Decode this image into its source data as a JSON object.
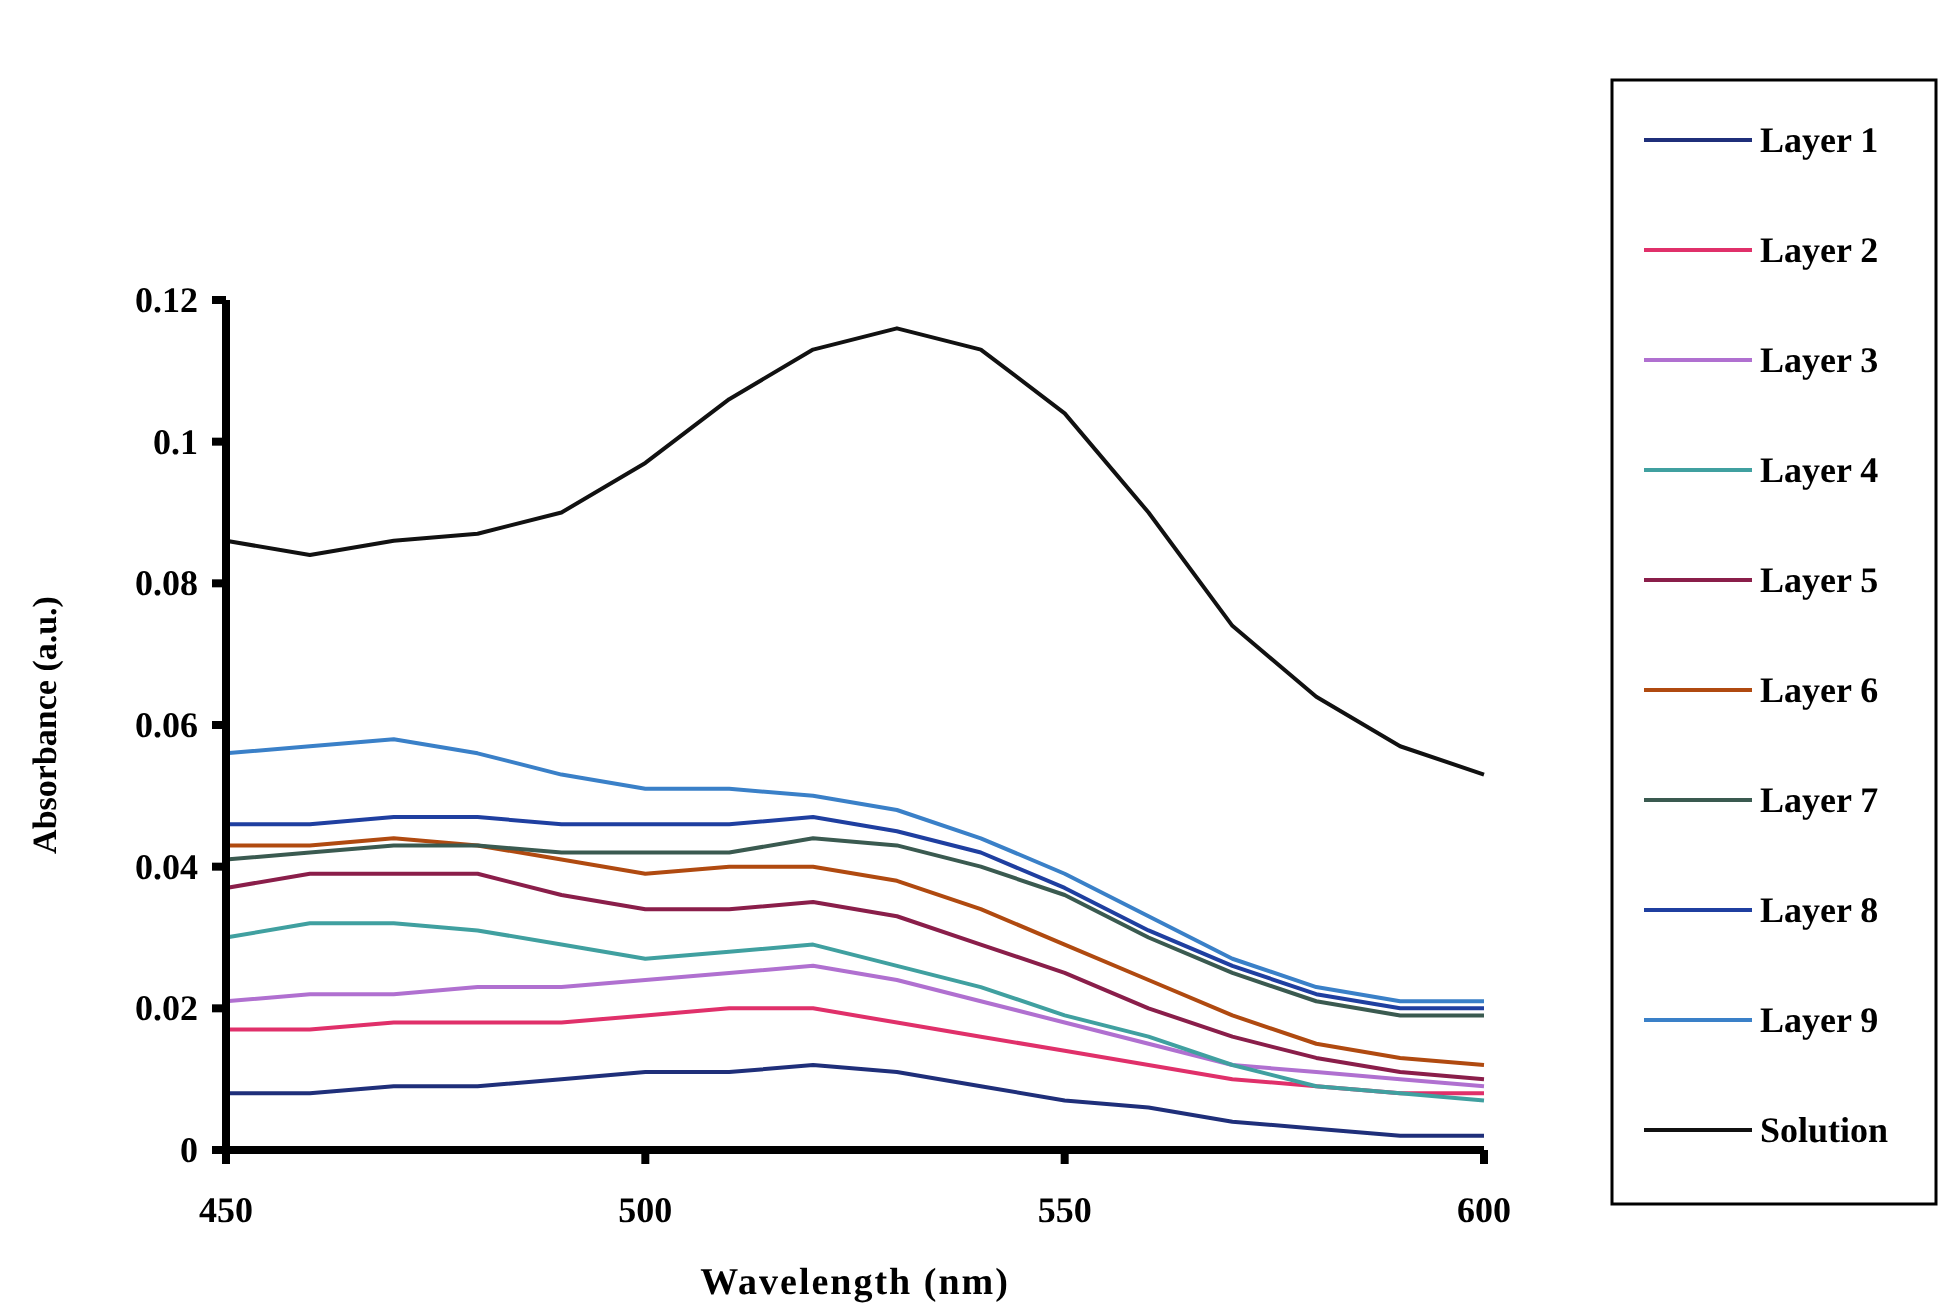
{
  "chart_data": {
    "type": "line",
    "xlabel": "Wavelength (nm)",
    "ylabel": "Absorbance (a.u.)",
    "xlim": [
      450,
      600
    ],
    "xticks": [
      450,
      500,
      550,
      600
    ],
    "ylim": [
      0,
      0.12
    ],
    "yticks": [
      0,
      0.02,
      0.04,
      0.06,
      0.08,
      0.1,
      0.12
    ],
    "legend": "right",
    "line_style": "solid",
    "x": [
      450,
      460,
      470,
      480,
      490,
      500,
      510,
      520,
      530,
      540,
      550,
      560,
      570,
      580,
      590,
      600
    ],
    "series": [
      {
        "name": "Layer 1",
        "color": "#1f2f7a",
        "values": [
          0.008,
          0.008,
          0.009,
          0.009,
          0.01,
          0.011,
          0.011,
          0.012,
          0.011,
          0.009,
          0.007,
          0.006,
          0.004,
          0.003,
          0.002,
          0.002
        ]
      },
      {
        "name": "Layer 2",
        "color": "#e0306a",
        "values": [
          0.017,
          0.017,
          0.018,
          0.018,
          0.018,
          0.019,
          0.02,
          0.02,
          0.018,
          0.016,
          0.014,
          0.012,
          0.01,
          0.009,
          0.008,
          0.008
        ]
      },
      {
        "name": "Layer 3",
        "color": "#b070d0",
        "values": [
          0.021,
          0.022,
          0.022,
          0.023,
          0.023,
          0.024,
          0.025,
          0.026,
          0.024,
          0.021,
          0.018,
          0.015,
          0.012,
          0.011,
          0.01,
          0.009
        ]
      },
      {
        "name": "Layer 4",
        "color": "#40a0a0",
        "values": [
          0.03,
          0.032,
          0.032,
          0.031,
          0.029,
          0.027,
          0.028,
          0.029,
          0.026,
          0.023,
          0.019,
          0.016,
          0.012,
          0.009,
          0.008,
          0.007
        ]
      },
      {
        "name": "Layer 5",
        "color": "#8a1e4a",
        "values": [
          0.037,
          0.039,
          0.039,
          0.039,
          0.036,
          0.034,
          0.034,
          0.035,
          0.033,
          0.029,
          0.025,
          0.02,
          0.016,
          0.013,
          0.011,
          0.01
        ]
      },
      {
        "name": "Layer 6",
        "color": "#b04a10",
        "values": [
          0.043,
          0.043,
          0.044,
          0.043,
          0.041,
          0.039,
          0.04,
          0.04,
          0.038,
          0.034,
          0.029,
          0.024,
          0.019,
          0.015,
          0.013,
          0.012
        ]
      },
      {
        "name": "Layer 7",
        "color": "#3a5a50",
        "values": [
          0.041,
          0.042,
          0.043,
          0.043,
          0.042,
          0.042,
          0.042,
          0.044,
          0.043,
          0.04,
          0.036,
          0.03,
          0.025,
          0.021,
          0.019,
          0.019
        ]
      },
      {
        "name": "Layer 8",
        "color": "#1f3fa0",
        "values": [
          0.046,
          0.046,
          0.047,
          0.047,
          0.046,
          0.046,
          0.046,
          0.047,
          0.045,
          0.042,
          0.037,
          0.031,
          0.026,
          0.022,
          0.02,
          0.02
        ]
      },
      {
        "name": "Layer 9",
        "color": "#3a80c8",
        "values": [
          0.056,
          0.057,
          0.058,
          0.056,
          0.053,
          0.051,
          0.051,
          0.05,
          0.048,
          0.044,
          0.039,
          0.033,
          0.027,
          0.023,
          0.021,
          0.021
        ]
      },
      {
        "name": "Solution",
        "color": "#111111",
        "values": [
          0.086,
          0.084,
          0.086,
          0.087,
          0.09,
          0.097,
          0.106,
          0.113,
          0.116,
          0.113,
          0.104,
          0.09,
          0.074,
          0.064,
          0.057,
          0.053
        ]
      }
    ]
  }
}
